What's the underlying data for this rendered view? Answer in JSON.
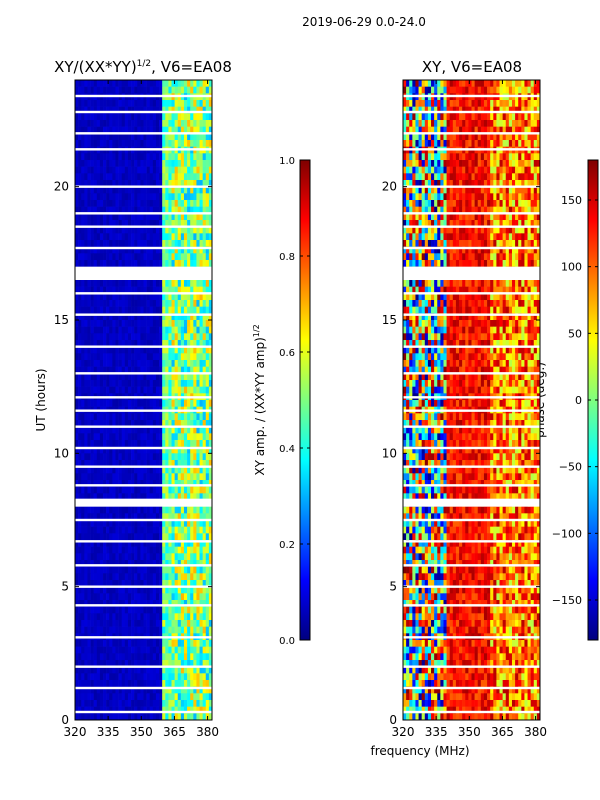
{
  "suptitle": "2019-06-29 0.0-24.0",
  "xlabel_shared": "frequency (MHz)",
  "colors": {
    "jet": [
      "#00007f",
      "#0000ff",
      "#007fff",
      "#00ffff",
      "#7fff7f",
      "#ffff00",
      "#ff7f00",
      "#ff0000",
      "#7f0000"
    ]
  },
  "chart_data": [
    {
      "type": "heatmap",
      "id": "amp",
      "title_main": "XY/(XX*YY)",
      "title_sup": "1/2",
      "title_tail": ", V6=EA08",
      "xlabel": "",
      "ylabel": "UT (hours)",
      "xlim": [
        320,
        382
      ],
      "ylim": [
        0,
        24
      ],
      "xticks": [
        320,
        335,
        350,
        365,
        380
      ],
      "yticks": [
        0,
        5,
        10,
        15,
        20
      ],
      "colorbar": {
        "label_main": "XY amp. / (XX*YY amp)",
        "label_sup": "1/2",
        "vmin": 0.0,
        "vmax": 1.0,
        "ticks": [
          "0.0",
          "0.2",
          "0.4",
          "0.6",
          "0.8",
          "1.0"
        ]
      },
      "gaps_hours": [
        0.3,
        1.2,
        2.0,
        3.1,
        4.3,
        5.0,
        5.8,
        6.7,
        7.5,
        8.2,
        8.8,
        9.5,
        10.2,
        11.0,
        11.6,
        12.1,
        13.0,
        14.0,
        15.2,
        16.0,
        16.8,
        17.7,
        18.5,
        19.0,
        20.0,
        21.4,
        22.0,
        22.8,
        23.4
      ]
    },
    {
      "type": "heatmap",
      "id": "phase",
      "title_main": "XY, V6=EA08",
      "xlabel": "frequency (MHz)",
      "ylabel": "",
      "xlim": [
        320,
        382
      ],
      "ylim": [
        0,
        24
      ],
      "xticks": [
        320,
        335,
        350,
        365,
        380
      ],
      "yticks": [
        0,
        5,
        10,
        15,
        20
      ],
      "colorbar": {
        "label_main": "phase (deg.)",
        "vmin": -180,
        "vmax": 180,
        "ticks": [
          "−150",
          "−100",
          "−50",
          "0",
          "50",
          "100",
          "150"
        ]
      },
      "gaps_hours": [
        0.3,
        1.2,
        2.0,
        3.1,
        4.3,
        5.0,
        5.8,
        6.7,
        7.5,
        8.2,
        8.8,
        9.5,
        10.2,
        11.0,
        11.6,
        12.1,
        13.0,
        14.0,
        15.2,
        16.0,
        16.8,
        17.7,
        18.5,
        19.0,
        20.0,
        21.4,
        22.0,
        22.8,
        23.4
      ]
    }
  ]
}
